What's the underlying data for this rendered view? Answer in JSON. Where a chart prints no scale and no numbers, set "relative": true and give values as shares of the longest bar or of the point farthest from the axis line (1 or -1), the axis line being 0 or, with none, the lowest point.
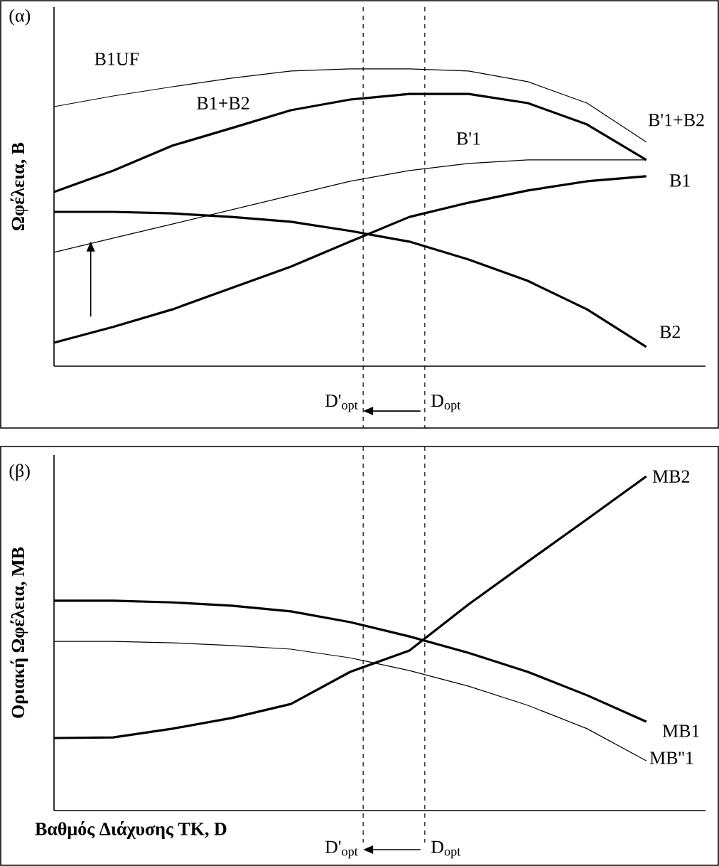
{
  "chart_data": [
    {
      "type": "line",
      "relative": true,
      "ylabel": "**Ωφέλεια, B**",
      "categories": [
        null,
        null,
        null,
        null,
        null,
        null,
        null,
        null,
        null,
        null,
        null
      ],
      "series": [
        {
          "name": "B'1+B2",
          "color": "#000000",
          "values": [
            0.873,
            0.909,
            0.94,
            0.969,
            0.993,
            1,
            1,
            0.993,
            0.957,
            0.885,
            0.754
          ]
        },
        {
          "name": "B1+B2",
          "color": "#000000",
          "values": [
            0.586,
            0.658,
            0.742,
            0.801,
            0.861,
            0.897,
            0.916,
            0.916,
            0.885,
            0.813,
            0.694
          ]
        },
        {
          "name": "B'1",
          "color": "#000000",
          "values": [
            0.383,
            0.431,
            0.478,
            0.526,
            0.574,
            0.622,
            0.658,
            0.682,
            0.694,
            0.694,
            0.694
          ]
        },
        {
          "name": "B1",
          "color": "#000000",
          "values": [
            0.079,
            0.132,
            0.191,
            0.263,
            0.335,
            0.419,
            0.502,
            0.55,
            0.591,
            0.622,
            0.639
          ]
        },
        {
          "name": "B2",
          "color": "#000000",
          "values": [
            0.519,
            0.519,
            0.514,
            0.502,
            0.486,
            0.455,
            0.419,
            0.359,
            0.287,
            0.191,
            0.065
          ]
        }
      ],
      "annotations": [
        "(α)",
        "B1UF",
        "D'$_{opt}$",
        "D$_{opt}$"
      ]
    },
    {
      "type": "line",
      "relative": true,
      "ylabel": "**Οριακή Ωφέλεια, MB**",
      "xlabel": "**Βαθμός Διάχυσης ΤΚ, D**",
      "categories": [
        null,
        null,
        null,
        null,
        null,
        null,
        null,
        null,
        null,
        null,
        null
      ],
      "series": [
        {
          "name": "MB2",
          "color": "#000000",
          "values": [
            0.217,
            0.219,
            0.245,
            0.277,
            0.319,
            0.415,
            0.479,
            0.617,
            0.745,
            0.872,
            1
          ]
        },
        {
          "name": "MB1",
          "color": "#000000",
          "values": [
            0.628,
            0.628,
            0.623,
            0.613,
            0.596,
            0.564,
            0.521,
            0.472,
            0.415,
            0.345,
            0.266
          ]
        },
        {
          "name": "MB''1",
          "color": "#000000",
          "values": [
            0.506,
            0.506,
            0.502,
            0.494,
            0.483,
            0.457,
            0.419,
            0.372,
            0.315,
            0.245,
            0.149
          ]
        }
      ],
      "annotations": [
        "(β)",
        "D'$_{opt}$",
        "D$_{opt}$"
      ]
    }
  ]
}
